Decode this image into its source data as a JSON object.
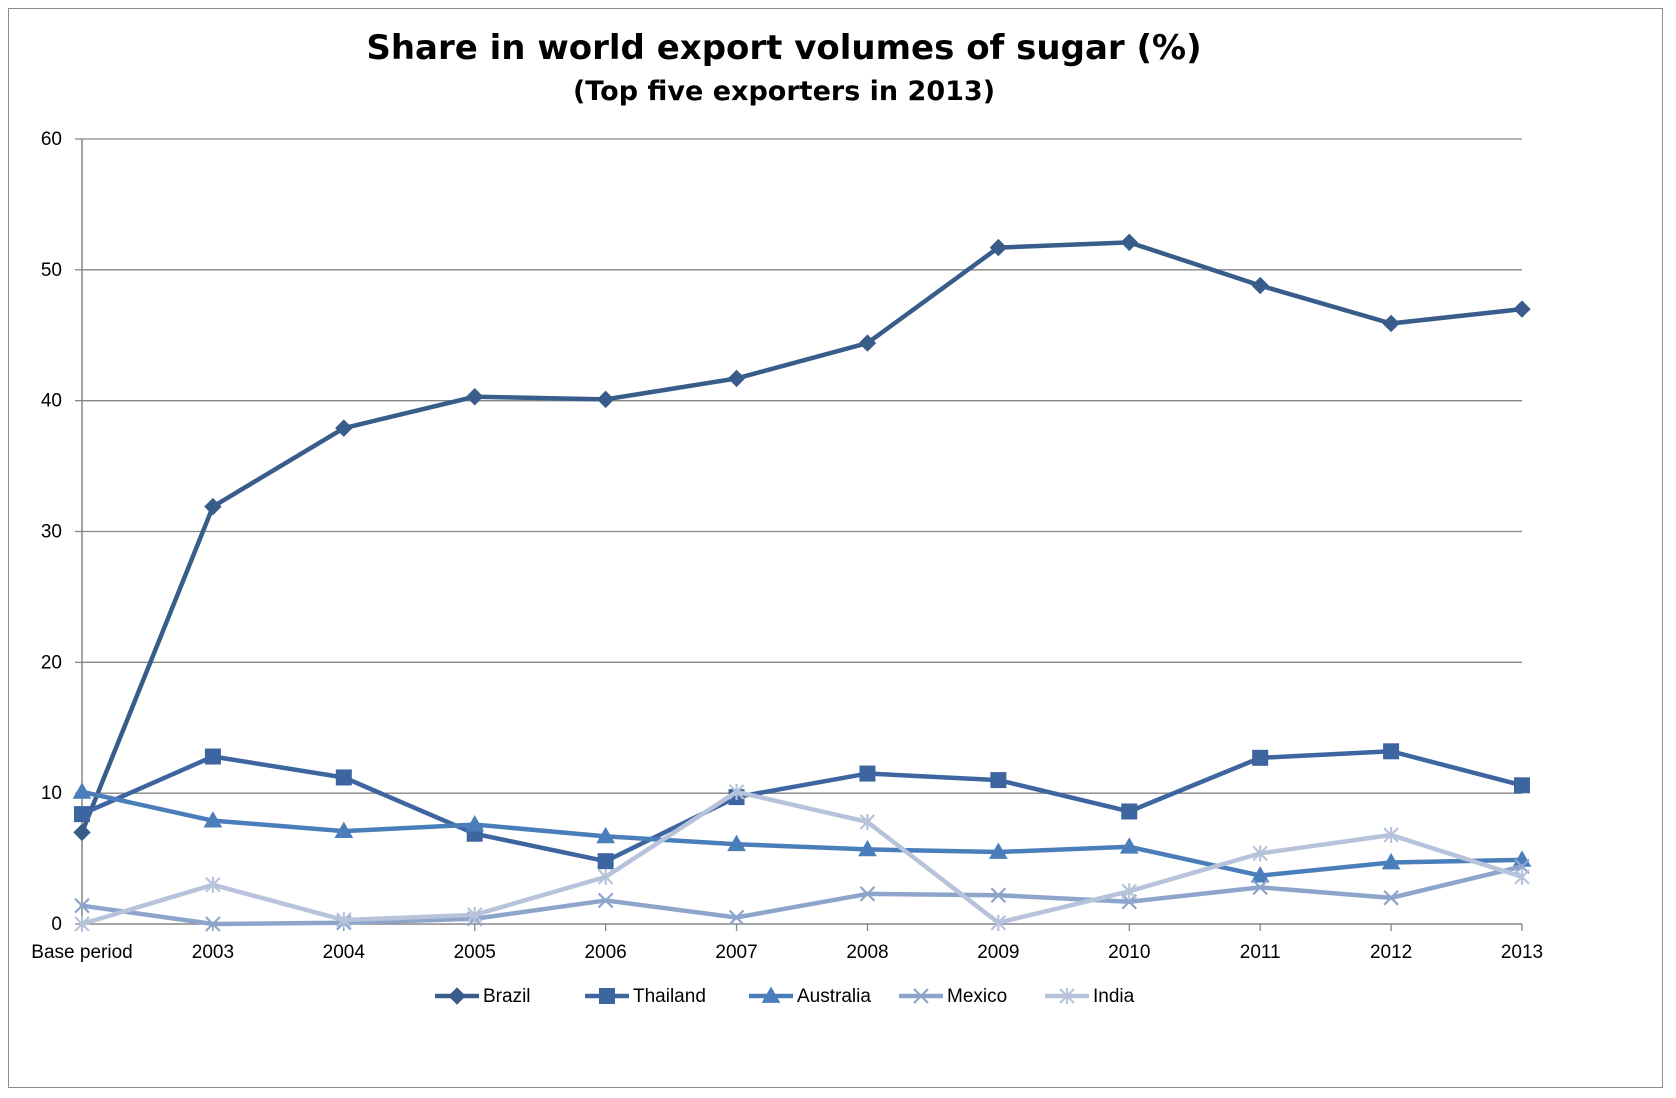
{
  "chart_data": {
    "type": "line",
    "title": "Share in world export volumes of sugar (%)",
    "subtitle": "(Top five exporters in 2013)",
    "xlabel": "",
    "ylabel": "",
    "categories": [
      "Base period",
      "2003",
      "2004",
      "2005",
      "2006",
      "2007",
      "2008",
      "2009",
      "2010",
      "2011",
      "2012",
      "2013"
    ],
    "ylim": [
      0,
      60
    ],
    "yticks": [
      0,
      10,
      20,
      30,
      40,
      50,
      60
    ],
    "grid": true,
    "legend_position": "bottom",
    "series": [
      {
        "name": "Brazil",
        "marker": "diamond",
        "color": "#385d8a",
        "values": [
          7.0,
          31.9,
          37.9,
          40.3,
          40.1,
          41.7,
          44.4,
          51.7,
          52.1,
          48.8,
          45.9,
          47.0
        ]
      },
      {
        "name": "Thailand",
        "marker": "square",
        "color": "#3d65a0",
        "values": [
          8.4,
          12.8,
          11.2,
          6.9,
          4.8,
          9.7,
          11.5,
          11.0,
          8.6,
          12.7,
          13.2,
          10.6
        ]
      },
      {
        "name": "Australia",
        "marker": "triangle",
        "color": "#4a7ebb",
        "values": [
          10.1,
          7.9,
          7.1,
          7.6,
          6.7,
          6.1,
          5.7,
          5.5,
          5.9,
          3.7,
          4.7,
          4.9
        ]
      },
      {
        "name": "Mexico",
        "marker": "x",
        "color": "#8ea5cb",
        "values": [
          1.4,
          0.0,
          0.1,
          0.4,
          1.8,
          0.5,
          2.3,
          2.2,
          1.7,
          2.8,
          2.0,
          4.4
        ]
      },
      {
        "name": "India",
        "marker": "star",
        "color": "#b7c3da",
        "values": [
          0.0,
          3.0,
          0.3,
          0.7,
          3.6,
          10.1,
          7.8,
          0.1,
          2.5,
          5.4,
          6.8,
          3.6
        ]
      }
    ]
  }
}
